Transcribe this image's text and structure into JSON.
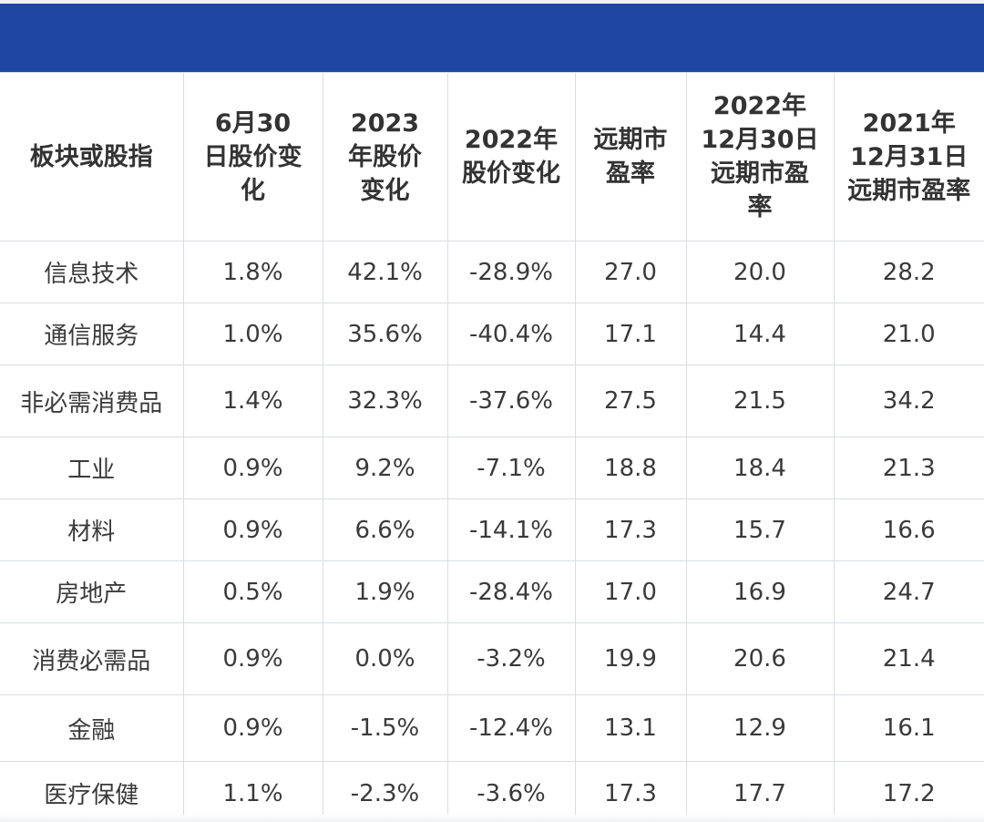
{
  "table": {
    "headers": [
      "板块或股指",
      "6月30日股价变化",
      "2023年股价变化",
      "2022年股价变化",
      "远期市盈率",
      "2022年12月30日远期市盈率",
      "2021年12月31日远期市盈率"
    ],
    "rows": [
      [
        "信息技术",
        "1.8%",
        "42.1%",
        "-28.9%",
        "27.0",
        "20.0",
        "28.2"
      ],
      [
        "通信服务",
        "1.0%",
        "35.6%",
        "-40.4%",
        "17.1",
        "14.4",
        "21.0"
      ],
      [
        "非必需消费品",
        "1.4%",
        "32.3%",
        "-37.6%",
        "27.5",
        "21.5",
        "34.2"
      ],
      [
        "工业",
        "0.9%",
        "9.2%",
        "-7.1%",
        "18.8",
        "18.4",
        "21.3"
      ],
      [
        "材料",
        "0.9%",
        "6.6%",
        "-14.1%",
        "17.3",
        "15.7",
        "16.6"
      ],
      [
        "房地产",
        "0.5%",
        "1.9%",
        "-28.4%",
        "17.0",
        "16.9",
        "24.7"
      ],
      [
        "消费必需品",
        "0.9%",
        "0.0%",
        "-3.2%",
        "19.9",
        "20.6",
        "21.4"
      ],
      [
        "金融",
        "0.9%",
        "-1.5%",
        "-12.4%",
        "13.1",
        "12.9",
        "16.1"
      ],
      [
        "医疗保健",
        "1.1%",
        "-2.3%",
        "-3.6%",
        "17.3",
        "17.7",
        "17.2"
      ]
    ]
  },
  "colors": {
    "banner": "#1d47a0",
    "grid": "#d9dde2",
    "text": "#333333"
  }
}
